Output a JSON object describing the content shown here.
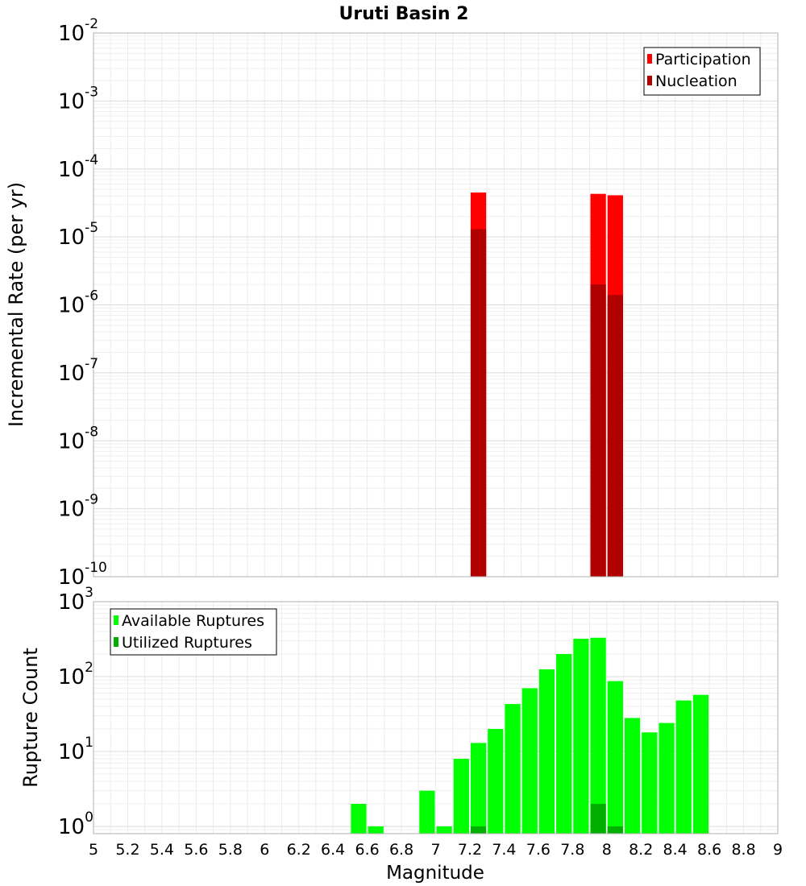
{
  "chart_data": {
    "type": "bar",
    "title": "Uruti Basin 2",
    "xlabel": "Magnitude",
    "x_ticks": [
      "5",
      "5.2",
      "5.4",
      "5.6",
      "5.8",
      "6",
      "6.2",
      "6.4",
      "6.6",
      "6.8",
      "7",
      "7.2",
      "7.4",
      "7.6",
      "7.8",
      "8",
      "8.2",
      "8.4",
      "8.6",
      "8.8",
      "9"
    ],
    "xlim": [
      5,
      9
    ],
    "bin_width": 0.1,
    "panels": [
      {
        "name": "rate",
        "ylabel": "Incremental Rate (per yr)",
        "yscale": "log",
        "ylim": [
          1e-10,
          0.01
        ],
        "y_tick_exponents": [
          -10,
          -9,
          -8,
          -7,
          -6,
          -5,
          -4,
          -3,
          -2
        ],
        "grid": true,
        "legend_position": "top-right",
        "series": [
          {
            "name": "Participation",
            "color": "#ff0000",
            "points": [
              {
                "x": 7.25,
                "y": 4.5e-05
              },
              {
                "x": 7.95,
                "y": 4.3e-05
              },
              {
                "x": 8.05,
                "y": 4.1e-05
              }
            ]
          },
          {
            "name": "Nucleation",
            "color": "#b00000",
            "points": [
              {
                "x": 7.25,
                "y": 1.3e-05
              },
              {
                "x": 7.95,
                "y": 2e-06
              },
              {
                "x": 8.05,
                "y": 1.4e-06
              }
            ]
          }
        ]
      },
      {
        "name": "count",
        "ylabel": "Rupture Count",
        "yscale": "log",
        "ylim": [
          0.8,
          1000
        ],
        "y_tick_exponents": [
          0,
          1,
          2,
          3
        ],
        "grid": true,
        "legend_position": "top-left",
        "series": [
          {
            "name": "Available Ruptures",
            "color": "#00ff00",
            "points": [
              {
                "x": 6.55,
                "y": 2
              },
              {
                "x": 6.65,
                "y": 1
              },
              {
                "x": 6.95,
                "y": 3
              },
              {
                "x": 7.05,
                "y": 1
              },
              {
                "x": 7.15,
                "y": 8
              },
              {
                "x": 7.25,
                "y": 13
              },
              {
                "x": 7.35,
                "y": 20
              },
              {
                "x": 7.45,
                "y": 43
              },
              {
                "x": 7.55,
                "y": 70
              },
              {
                "x": 7.65,
                "y": 125
              },
              {
                "x": 7.75,
                "y": 200
              },
              {
                "x": 7.85,
                "y": 320
              },
              {
                "x": 7.95,
                "y": 330
              },
              {
                "x": 8.05,
                "y": 87
              },
              {
                "x": 8.15,
                "y": 28
              },
              {
                "x": 8.25,
                "y": 18
              },
              {
                "x": 8.35,
                "y": 24
              },
              {
                "x": 8.45,
                "y": 48
              },
              {
                "x": 8.55,
                "y": 57
              }
            ]
          },
          {
            "name": "Utilized Ruptures",
            "color": "#00b000",
            "points": [
              {
                "x": 7.25,
                "y": 1
              },
              {
                "x": 7.95,
                "y": 2
              },
              {
                "x": 8.05,
                "y": 1
              }
            ]
          }
        ]
      }
    ]
  }
}
